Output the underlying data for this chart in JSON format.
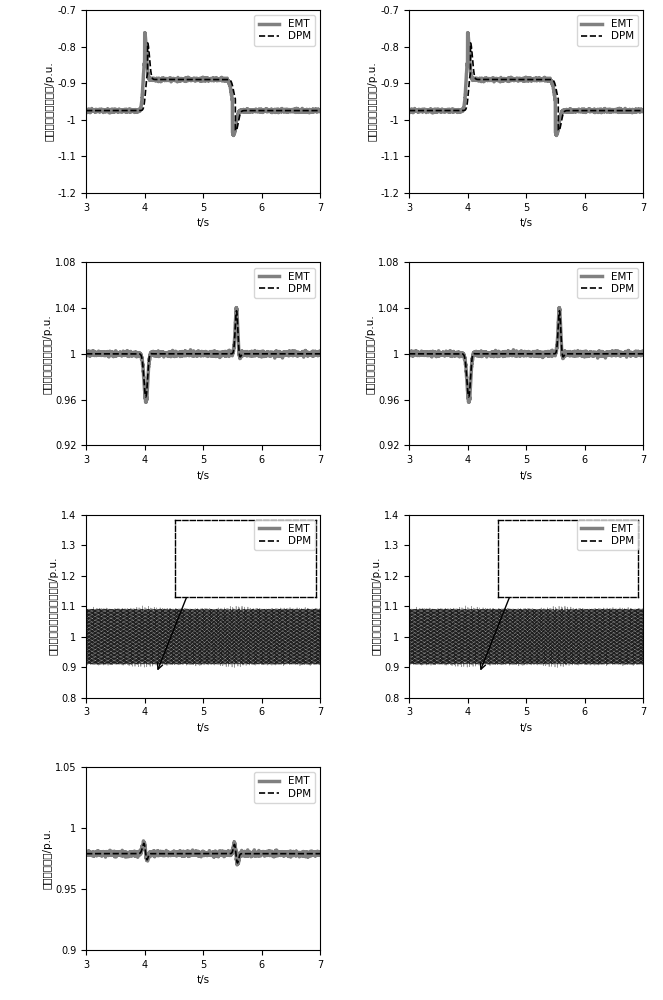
{
  "xlim": [
    3,
    7
  ],
  "xlabel": "t/s",
  "row1": {
    "ylim": [
      -1.2,
      -0.7
    ],
    "yticks": [
      -1.2,
      -1.1,
      -1.0,
      -0.9,
      -0.8,
      -0.7
    ],
    "ylabel_left": "高端换流器有功功率/p.u.",
    "ylabel_right": "低端换流器有功功率/p.u."
  },
  "row2": {
    "ylim": [
      0.92,
      1.08
    ],
    "yticks": [
      0.92,
      0.96,
      1.0,
      1.04,
      1.08
    ],
    "ylabel_left": "高端换流器直流电压/p.u.",
    "ylabel_right": "低端换流器直流电压/p.u."
  },
  "row3": {
    "ylim": [
      0.8,
      1.4
    ],
    "yticks": [
      0.8,
      0.9,
      1.0,
      1.1,
      1.2,
      1.3,
      1.4
    ],
    "ylabel_left": "高端换流器子模块电容电压/p.u.",
    "ylabel_right": "低端换流器子模块电容电压/p.u."
  },
  "row4": {
    "ylim": [
      0.9,
      1.05
    ],
    "yticks": [
      0.9,
      0.95,
      1.0,
      1.05
    ],
    "ylabel": "交流母线电压/p.u."
  },
  "emt_color": "#808080",
  "dpm_color": "#000000",
  "emt_lw": 2.5,
  "dpm_lw": 1.2
}
